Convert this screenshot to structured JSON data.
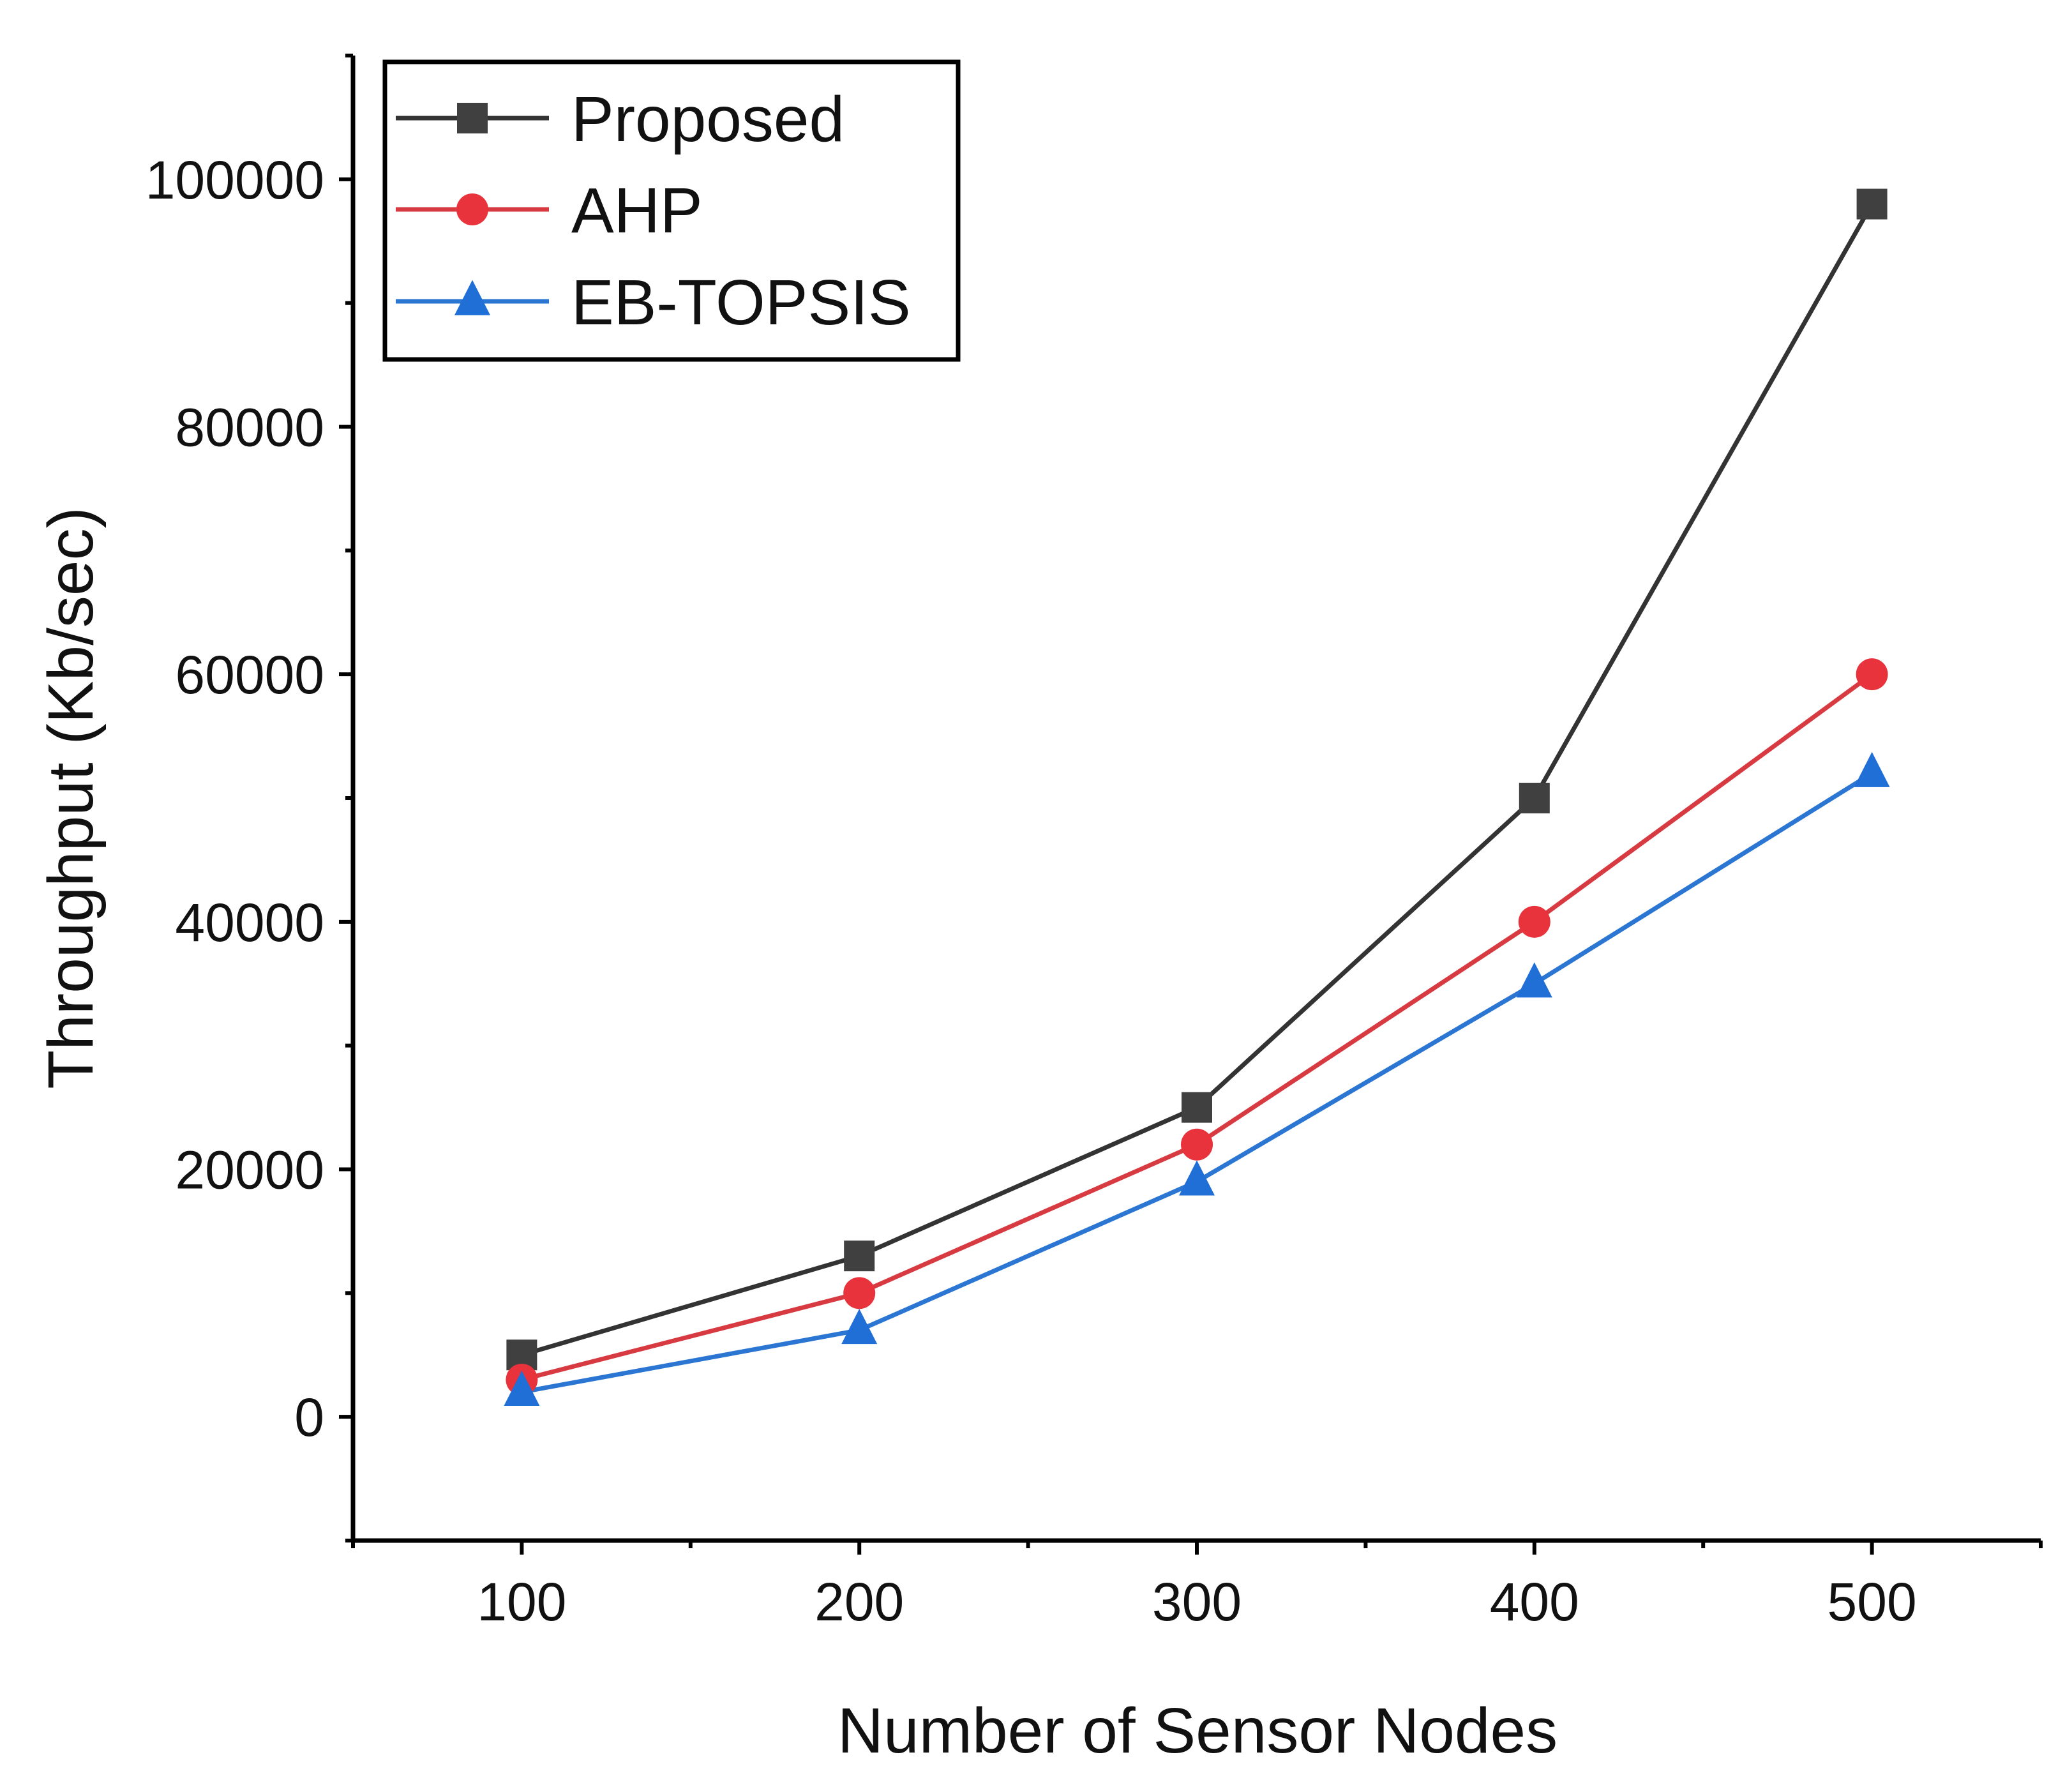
{
  "chart_data": {
    "type": "line",
    "title": "",
    "xlabel": "Number of Sensor Nodes",
    "ylabel": "Throughput (Kb/sec)",
    "xlim": [
      50,
      550
    ],
    "ylim": [
      -10000,
      110000
    ],
    "x": [
      100,
      200,
      300,
      400,
      500
    ],
    "x_ticks": [
      100,
      200,
      300,
      400,
      500
    ],
    "x_minor_ticks": [
      50,
      150,
      250,
      350,
      450,
      550
    ],
    "y_ticks": [
      0,
      20000,
      40000,
      60000,
      80000,
      100000
    ],
    "y_minor_ticks": [
      -10000,
      10000,
      30000,
      50000,
      70000,
      90000,
      110000
    ],
    "x_tick_labels": [
      "100",
      "200",
      "300",
      "400",
      "500"
    ],
    "y_tick_labels": [
      "0",
      "20000",
      "40000",
      "60000",
      "80000",
      "100000"
    ],
    "grid": false,
    "legend_position": "top-left",
    "series": [
      {
        "name": "Proposed",
        "marker": "square",
        "color": "#404040",
        "line_color": "#333333",
        "values": [
          5000,
          13000,
          25000,
          50000,
          98000
        ]
      },
      {
        "name": "AHP",
        "marker": "circle",
        "color": "#e8323c",
        "line_color": "#d83a42",
        "values": [
          3000,
          10000,
          22000,
          40000,
          60000
        ]
      },
      {
        "name": "EB-TOPSIS",
        "marker": "triangle",
        "color": "#1f6fd6",
        "line_color": "#2a76d2",
        "values": [
          2000,
          7000,
          19000,
          35000,
          52000
        ]
      }
    ]
  }
}
